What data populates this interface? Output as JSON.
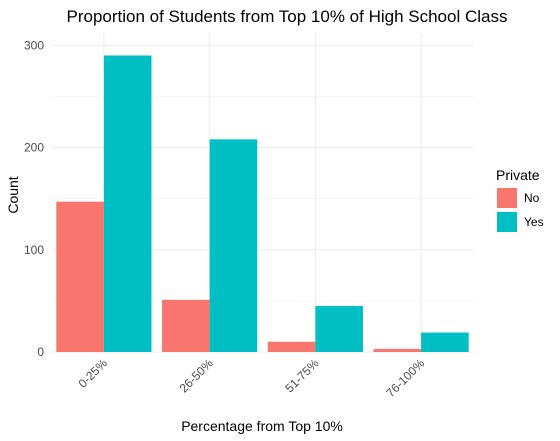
{
  "chart_data": {
    "type": "bar",
    "title": "Proportion of Students from Top 10% of High School Class",
    "xlabel": "Percentage from Top 10%",
    "ylabel": "Count",
    "categories": [
      "0-25%",
      "26-50%",
      "51-75%",
      "76-100%"
    ],
    "series": [
      {
        "name": "No",
        "color": "#F8766D",
        "values": [
          147,
          51,
          10,
          3
        ]
      },
      {
        "name": "Yes",
        "color": "#00BFC4",
        "values": [
          290,
          208,
          45,
          19
        ]
      }
    ],
    "ylim": [
      0,
      300
    ],
    "yticks": [
      0,
      100,
      200,
      300
    ],
    "grid": true,
    "legend": {
      "title": "Private",
      "position": "right"
    }
  }
}
